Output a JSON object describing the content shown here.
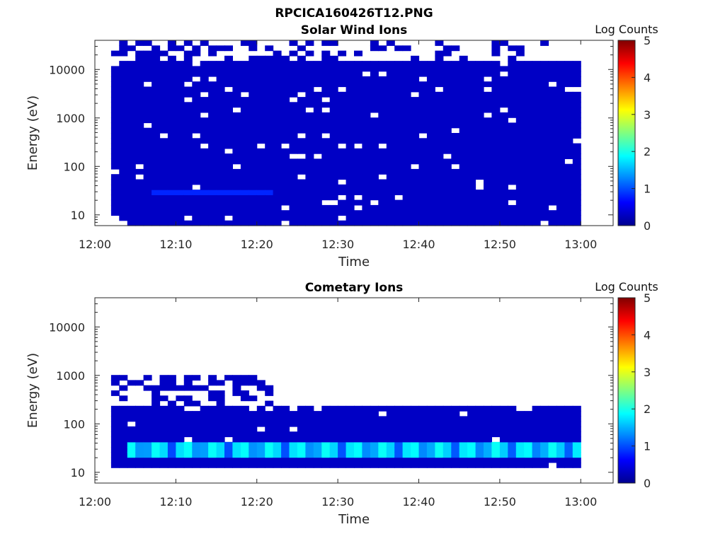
{
  "figure_title": "RPCICA160426T12.PNG",
  "colorbar_colors": [
    "#00008f",
    "#0000ff",
    "#0080ff",
    "#00ffff",
    "#80ff80",
    "#ffff00",
    "#ff8000",
    "#ff0000",
    "#800000"
  ],
  "chart_data": [
    {
      "type": "heatmap",
      "title": "Solar Wind Ions",
      "xlabel": "Time",
      "ylabel": "Energy (eV)",
      "x_range": [
        "12:00",
        "13:04"
      ],
      "x_ticks": [
        "12:00",
        "12:10",
        "12:20",
        "12:30",
        "12:40",
        "12:50",
        "13:00"
      ],
      "y_scale": "log",
      "y_range": [
        6,
        40000
      ],
      "y_ticks": [
        {
          "value": 10,
          "label": "10"
        },
        {
          "value": 100,
          "label": "100"
        },
        {
          "value": 1000,
          "label": "1000"
        },
        {
          "value": 10000,
          "label": "10000"
        }
      ],
      "colorbar": {
        "label": "Log Counts",
        "range": [
          0,
          5
        ],
        "ticks": [
          "0",
          "1",
          "2",
          "3",
          "4",
          "5"
        ],
        "colormap": "jet"
      },
      "data_time_range": [
        "12:02",
        "13:00"
      ],
      "dominant_level": 0.3,
      "features": [
        {
          "time": [
            "12:02",
            "13:00"
          ],
          "energy": [
            6,
            14000
          ],
          "level": 0.3
        },
        {
          "time": [
            "12:07",
            "12:22"
          ],
          "energy": [
            25,
            35
          ],
          "level": 0.8
        }
      ],
      "grid": false
    },
    {
      "type": "heatmap",
      "title": "Cometary Ions",
      "xlabel": "Time",
      "ylabel": "Energy (eV)",
      "x_range": [
        "12:00",
        "13:04"
      ],
      "x_ticks": [
        "12:00",
        "12:10",
        "12:20",
        "12:30",
        "12:40",
        "12:50",
        "13:00"
      ],
      "y_scale": "log",
      "y_range": [
        6,
        40000
      ],
      "y_ticks": [
        {
          "value": 10,
          "label": "10"
        },
        {
          "value": 100,
          "label": "100"
        },
        {
          "value": 1000,
          "label": "1000"
        },
        {
          "value": 10000,
          "label": "10000"
        }
      ],
      "colorbar": {
        "label": "Log Counts",
        "range": [
          0,
          5
        ],
        "ticks": [
          "0",
          "1",
          "2",
          "3",
          "4",
          "5"
        ],
        "colormap": "jet"
      },
      "data_time_range": [
        "12:02",
        "13:00"
      ],
      "dominant_level": 0.3,
      "features": [
        {
          "time": [
            "12:02",
            "13:00"
          ],
          "energy": [
            14,
            250
          ],
          "level": 0.3
        },
        {
          "time": [
            "12:04",
            "13:00"
          ],
          "energy": [
            20,
            38
          ],
          "level": 1.6
        }
      ],
      "grid": false
    }
  ]
}
